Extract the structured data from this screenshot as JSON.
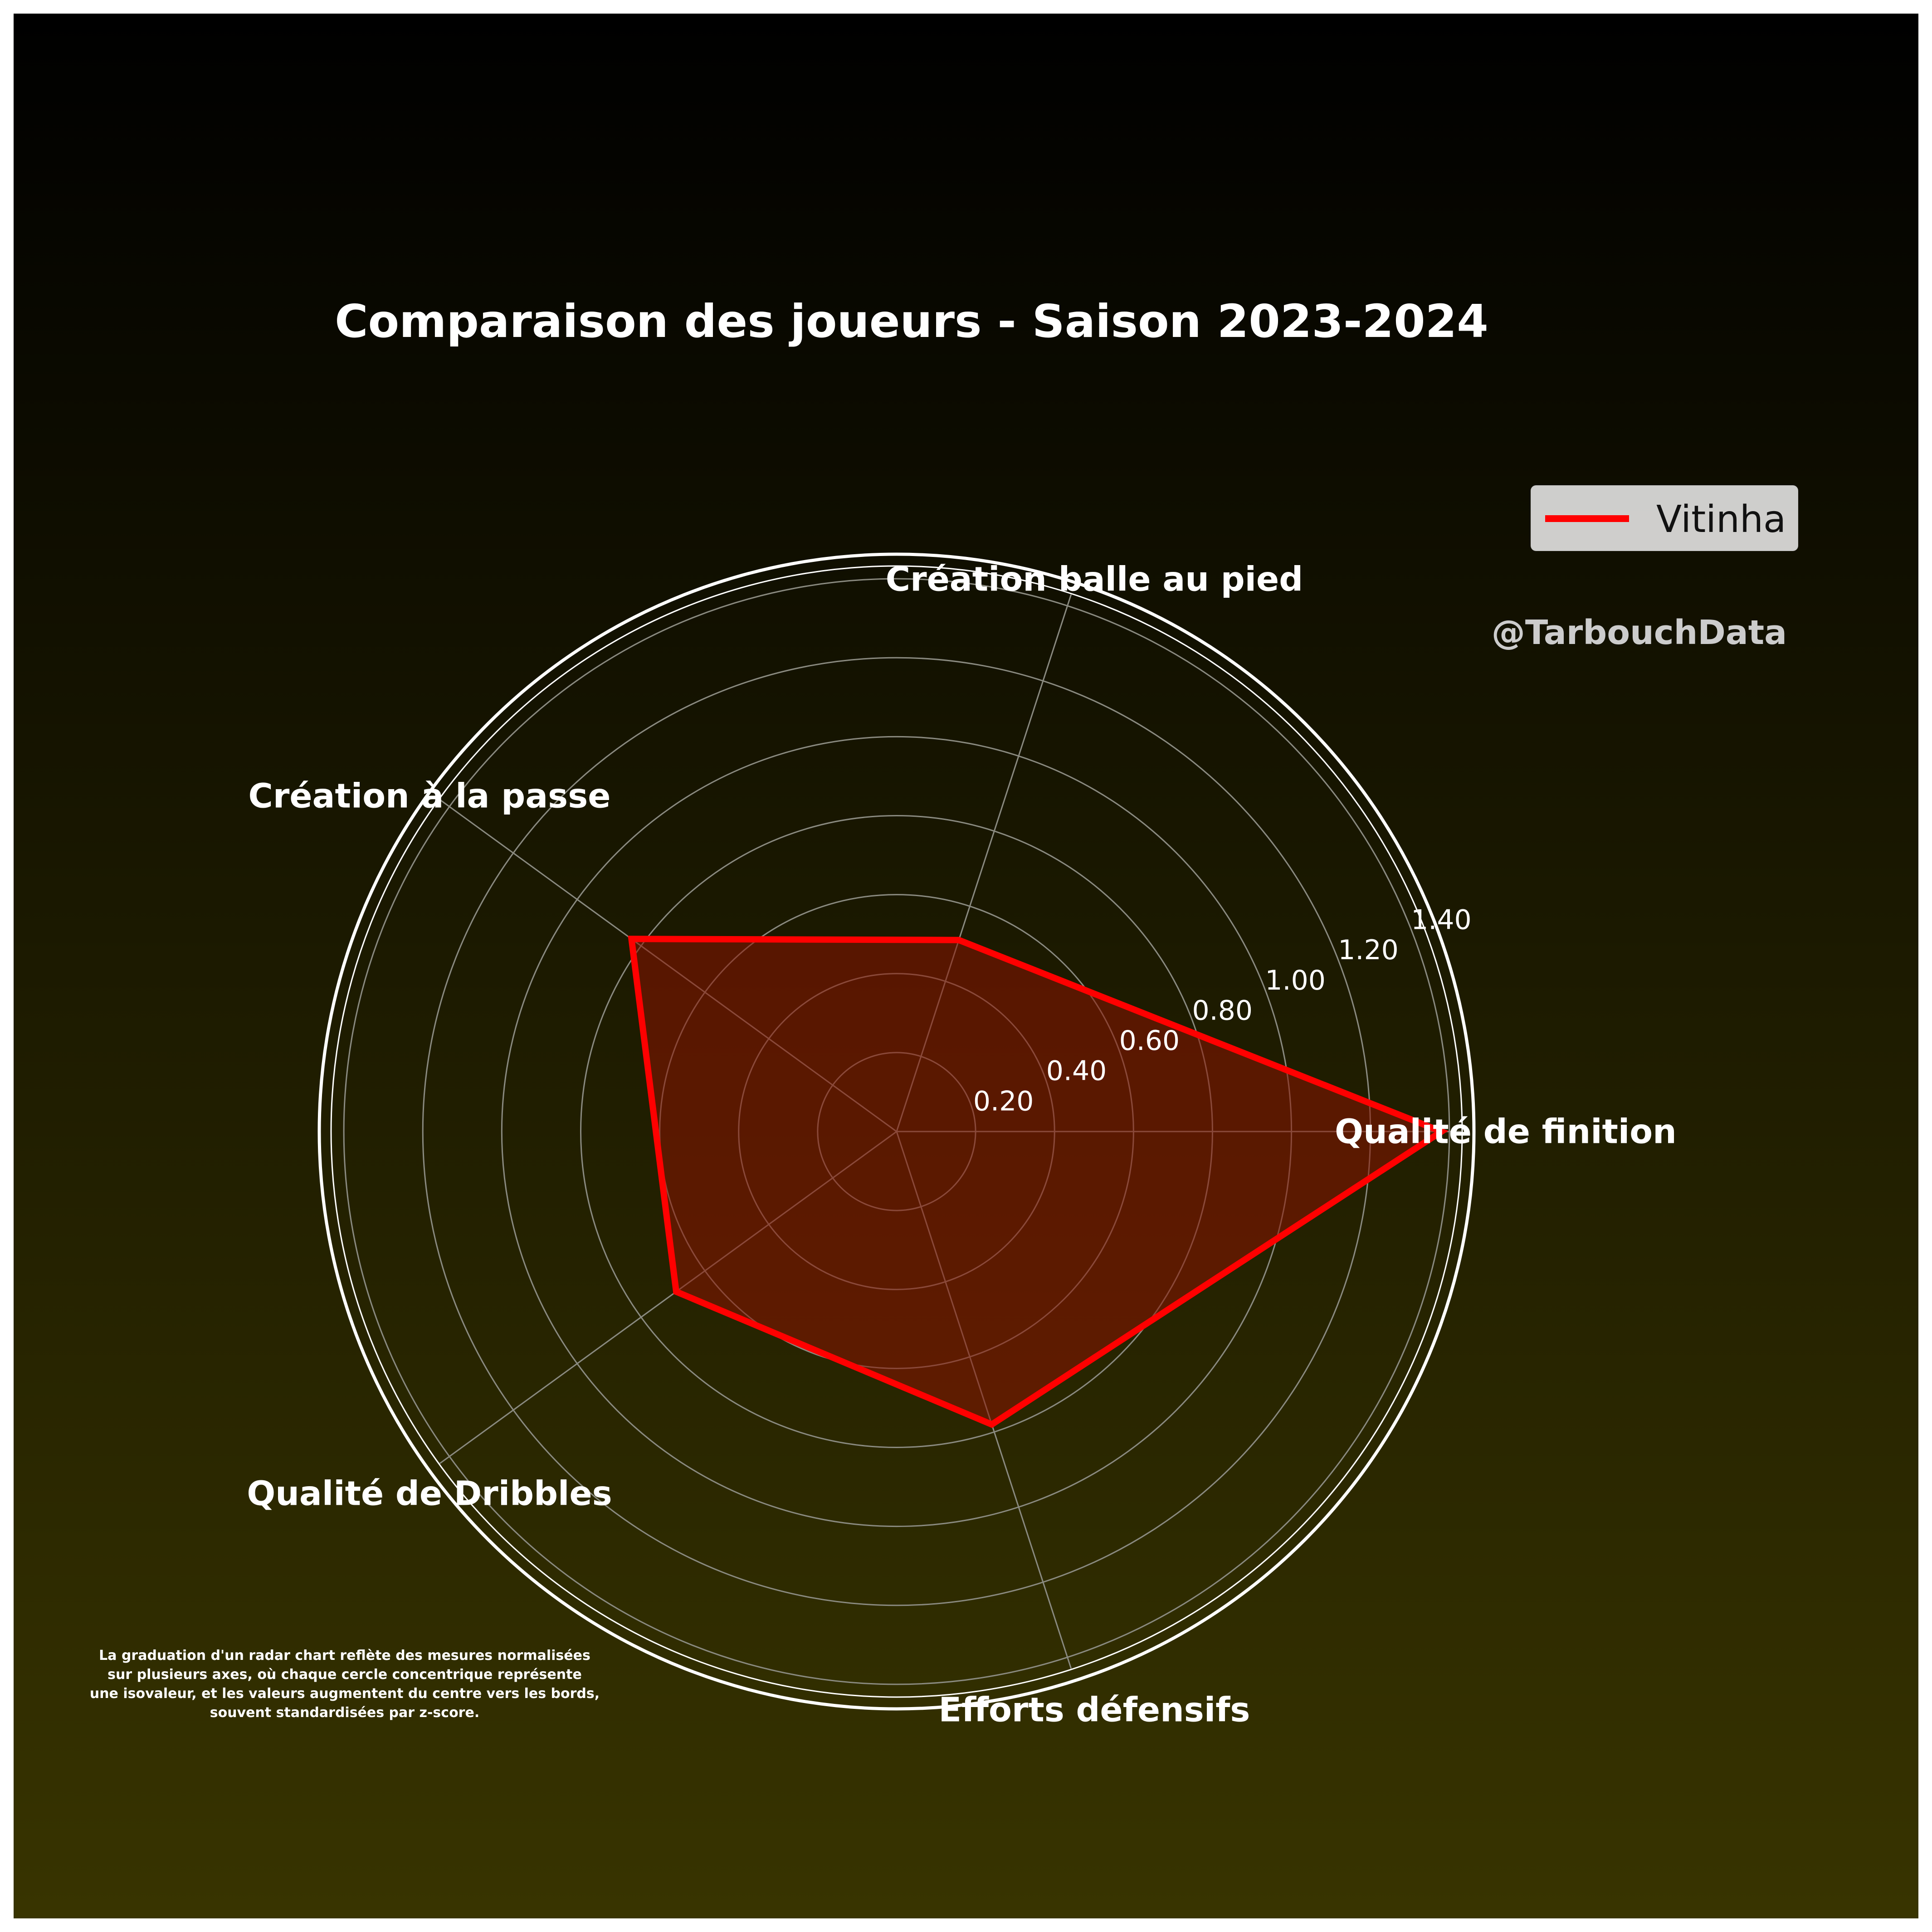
{
  "title": "Comparaison des joueurs - Saison 2023-2024",
  "watermark": "@TarbouchData",
  "footnote": [
    "La graduation d'un radar chart reflète des mesures normalisées",
    "sur plusieurs axes, où chaque cercle concentrique représente",
    "une isovaleur, et les valeurs augmentent du centre vers les bords,",
    "souvent standardisées par z-score."
  ],
  "colors": {
    "series": "#ff0000",
    "fill": "#8b1400",
    "background_top": "#000000",
    "background_bottom": "#383400",
    "text": "#ffffff"
  },
  "chart_data": {
    "type": "radar",
    "title": "Comparaison des joueurs - Saison 2023-2024",
    "axes": [
      "Qualité de finition",
      "Création balle au pied",
      "Création à la passe",
      "Qualité de Dribbles",
      "Efforts défensifs"
    ],
    "series": [
      {
        "name": "Vitinha",
        "values": [
          1.38,
          0.51,
          0.83,
          0.69,
          0.78
        ]
      }
    ],
    "r_ticks": [
      "0.20",
      "0.40",
      "0.60",
      "0.80",
      "1.00",
      "1.20",
      "1.40"
    ],
    "r_tick_values": [
      0.2,
      0.4,
      0.6,
      0.8,
      1.0,
      1.2,
      1.4
    ],
    "rlim": [
      0,
      1.43
    ],
    "grid": true,
    "legend": "top-right"
  }
}
